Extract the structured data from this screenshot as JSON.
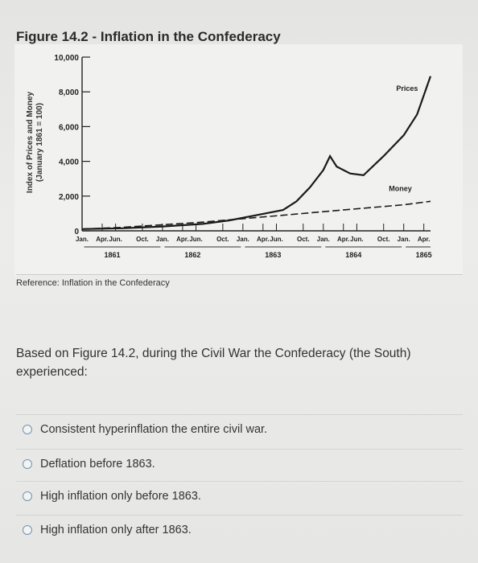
{
  "figure": {
    "title": "Figure 14.2 - Inflation in the Confederacy",
    "reference": "Reference: Inflation in the Confederacy"
  },
  "chart_data": {
    "type": "line",
    "title": "Figure 14.2 - Inflation in the Confederacy",
    "ylabel_line1": "Index of Prices and Money",
    "ylabel_line2": "(January 1861 = 100)",
    "xlabel": "",
    "ylim": [
      0,
      10000
    ],
    "y_ticks": [
      "10,000",
      "8,000",
      "6,000",
      "4,000",
      "2,000",
      "0"
    ],
    "y_tick_values": [
      10000,
      8000,
      6000,
      4000,
      2000,
      0
    ],
    "x_tick_labels": [
      "Jan.",
      "Apr.",
      "Jun.",
      "Oct.",
      "Jan.",
      "Apr.",
      "Jun.",
      "Oct.",
      "Jan.",
      "Apr.",
      "Jun.",
      "Oct.",
      "Jan.",
      "Apr.",
      "Jun.",
      "Oct.",
      "Jan.",
      "Apr."
    ],
    "x_tick_months": [
      0,
      3,
      5,
      9,
      12,
      15,
      17,
      21,
      24,
      27,
      29,
      33,
      36,
      39,
      41,
      45,
      48,
      51
    ],
    "year_labels": [
      "1861",
      "1862",
      "1863",
      "1864",
      "1865"
    ],
    "year_months": [
      4.5,
      16.5,
      28.5,
      40.5,
      51
    ],
    "x_range_months": [
      0,
      52
    ],
    "series": [
      {
        "name": "Prices",
        "style": "solid",
        "x_months": [
          0,
          6,
          12,
          18,
          22,
          26,
          30,
          32,
          34,
          36,
          37,
          38,
          40,
          42,
          45,
          48,
          50,
          52
        ],
        "values": [
          100,
          150,
          250,
          400,
          600,
          900,
          1200,
          1700,
          2500,
          3500,
          4300,
          3700,
          3300,
          3200,
          4300,
          5500,
          6700,
          8900
        ]
      },
      {
        "name": "Money",
        "style": "dashed",
        "x_months": [
          0,
          6,
          12,
          18,
          24,
          30,
          36,
          42,
          48,
          52
        ],
        "values": [
          100,
          200,
          350,
          500,
          700,
          900,
          1100,
          1300,
          1500,
          1700
        ]
      }
    ],
    "grid": false,
    "legend": "inline labels"
  },
  "question": {
    "text": "Based on Figure 14.2, during the Civil War the Confederacy (the South) experienced:"
  },
  "options": [
    "Consistent hyperinflation the entire civil war.",
    "Deflation before 1863.",
    "High inflation only before 1863.",
    "High inflation only after 1863."
  ],
  "colors": {
    "radio_border": "#6f93b8",
    "line": "#1a1a1a",
    "chart_bg": "#f1f1ef"
  }
}
